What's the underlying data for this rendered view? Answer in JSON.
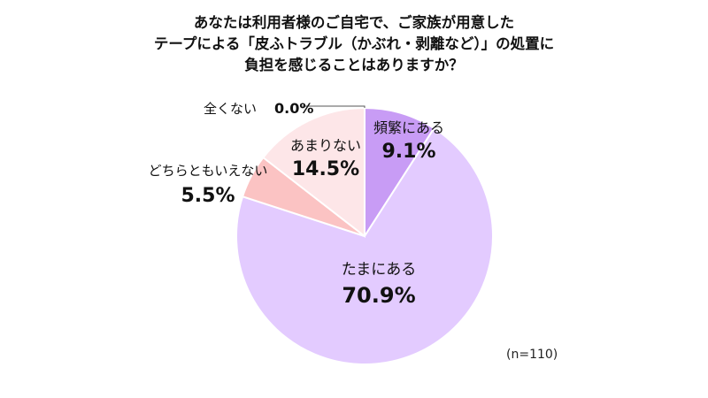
{
  "chart_data": {
    "type": "pie",
    "title_lines": [
      "あなたは利用者様のご自宅で、ご家族が用意した",
      "テープによる「皮ふトラブル（かぶれ・剥離など）」の処置に",
      "負担を感じることはありますか？"
    ],
    "slices": [
      {
        "label": "頻繁にある",
        "value": 9.1,
        "value_label": "9.1%",
        "color": "#c89cf5"
      },
      {
        "label": "たまにある",
        "value": 70.9,
        "value_label": "70.9%",
        "color": "#e3cbff"
      },
      {
        "label": "どちらともいえない",
        "value": 5.5,
        "value_label": "5.5%",
        "color": "#fbc3c3"
      },
      {
        "label": "あまりない",
        "value": 14.5,
        "value_label": "14.5%",
        "color": "#fde6e8"
      },
      {
        "label": "全くない",
        "value": 0.0,
        "value_label": "0.0%",
        "color": "#f2f2f2"
      }
    ],
    "note": "(n=110)"
  }
}
